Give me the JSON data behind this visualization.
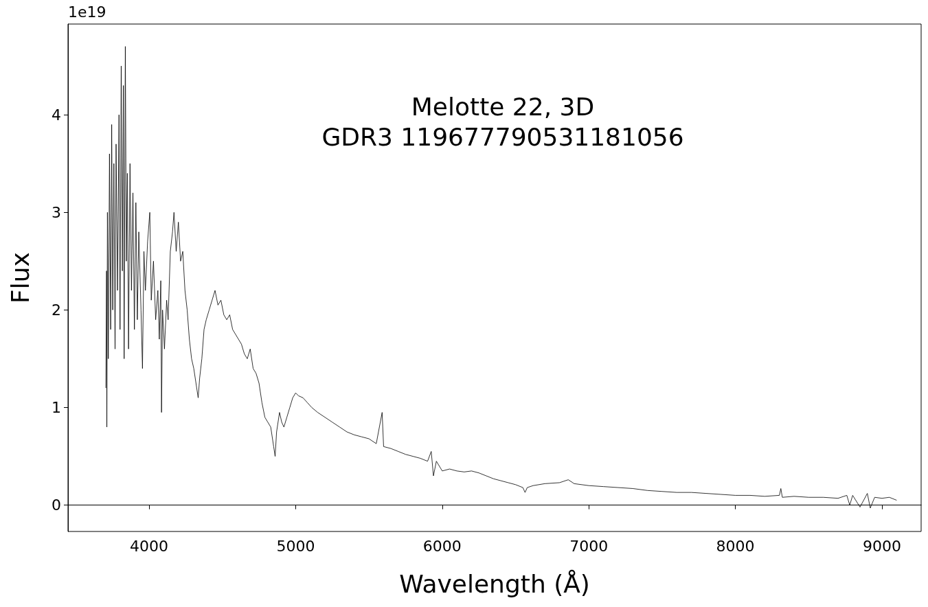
{
  "chart_data": {
    "type": "line",
    "title": "Melotte 22, 3D\nGDR3 119677790531181056",
    "xlabel": "Wavelength (Å)",
    "ylabel": "Flux",
    "annotations": [
      "1e19"
    ],
    "color": "#000000",
    "x": [
      3705,
      3710,
      3712,
      3716,
      3722,
      3730,
      3738,
      3745,
      3752,
      3760,
      3768,
      3775,
      3785,
      3795,
      3802,
      3810,
      3818,
      3825,
      3830,
      3838,
      3845,
      3852,
      3860,
      3870,
      3880,
      3890,
      3900,
      3910,
      3920,
      3930,
      3945,
      3955,
      3965,
      3975,
      3990,
      4005,
      4015,
      4030,
      4045,
      4060,
      4070,
      4080,
      4085,
      4092,
      4105,
      4120,
      4130,
      4145,
      4160,
      4170,
      4185,
      4200,
      4215,
      4230,
      4245,
      4260,
      4275,
      4290,
      4305,
      4320,
      4335,
      4345,
      4360,
      4375,
      4390,
      4410,
      4430,
      4450,
      4470,
      4490,
      4510,
      4530,
      4550,
      4570,
      4590,
      4610,
      4630,
      4650,
      4670,
      4690,
      4710,
      4730,
      4750,
      4770,
      4790,
      4810,
      4830,
      4850,
      4860,
      4870,
      4890,
      4905,
      4920,
      4940,
      4960,
      4980,
      5000,
      5020,
      5050,
      5080,
      5110,
      5150,
      5200,
      5250,
      5300,
      5350,
      5400,
      5450,
      5500,
      5550,
      5590,
      5600,
      5650,
      5700,
      5750,
      5800,
      5850,
      5900,
      5925,
      5940,
      5960,
      6000,
      6050,
      6100,
      6150,
      6200,
      6250,
      6300,
      6350,
      6400,
      6450,
      6500,
      6550,
      6565,
      6580,
      6620,
      6700,
      6800,
      6860,
      6900,
      7000,
      7100,
      7200,
      7300,
      7400,
      7500,
      7600,
      7700,
      7800,
      7900,
      8000,
      8100,
      8200,
      8300,
      8310,
      8320,
      8400,
      8500,
      8600,
      8700,
      8760,
      8780,
      8800,
      8850,
      8900,
      8920,
      8950,
      9000,
      9050,
      9100
    ],
    "values": [
      1.2,
      2.4,
      0.8,
      3.0,
      1.5,
      3.6,
      1.8,
      3.9,
      2.0,
      3.5,
      1.6,
      3.7,
      2.2,
      4.0,
      1.8,
      4.5,
      2.4,
      4.3,
      1.5,
      4.7,
      2.5,
      3.4,
      1.6,
      3.5,
      2.2,
      3.2,
      1.8,
      3.1,
      1.9,
      2.8,
      2.0,
      1.4,
      2.6,
      2.2,
      2.7,
      3.0,
      2.1,
      2.5,
      1.9,
      2.2,
      1.7,
      2.3,
      0.95,
      2.0,
      1.6,
      2.1,
      1.9,
      2.6,
      2.8,
      3.0,
      2.6,
      2.9,
      2.5,
      2.6,
      2.2,
      2.0,
      1.7,
      1.5,
      1.4,
      1.25,
      1.1,
      1.3,
      1.5,
      1.8,
      1.9,
      2.0,
      2.1,
      2.2,
      2.05,
      2.1,
      1.95,
      1.9,
      1.95,
      1.8,
      1.75,
      1.7,
      1.65,
      1.55,
      1.5,
      1.6,
      1.4,
      1.35,
      1.25,
      1.05,
      0.9,
      0.85,
      0.8,
      0.6,
      0.5,
      0.75,
      0.95,
      0.85,
      0.8,
      0.9,
      1.0,
      1.1,
      1.15,
      1.12,
      1.1,
      1.05,
      1.0,
      0.95,
      0.9,
      0.85,
      0.8,
      0.75,
      0.72,
      0.7,
      0.68,
      0.63,
      0.95,
      0.6,
      0.58,
      0.55,
      0.52,
      0.5,
      0.48,
      0.45,
      0.55,
      0.3,
      0.45,
      0.35,
      0.37,
      0.35,
      0.34,
      0.35,
      0.33,
      0.3,
      0.27,
      0.25,
      0.23,
      0.21,
      0.18,
      0.13,
      0.18,
      0.2,
      0.22,
      0.23,
      0.26,
      0.22,
      0.2,
      0.19,
      0.18,
      0.17,
      0.15,
      0.14,
      0.13,
      0.13,
      0.12,
      0.11,
      0.1,
      0.1,
      0.09,
      0.1,
      0.17,
      0.08,
      0.09,
      0.08,
      0.08,
      0.07,
      0.1,
      0.0,
      0.1,
      -0.02,
      0.12,
      -0.03,
      0.08,
      0.07,
      0.08,
      0.05
    ],
    "xlim": [
      3447,
      9267
    ],
    "xticks": [
      4000,
      5000,
      6000,
      7000,
      8000,
      9000
    ],
    "ylim": [
      -0.27,
      4.93
    ],
    "yticks": [
      0,
      1,
      2,
      3,
      4
    ]
  }
}
